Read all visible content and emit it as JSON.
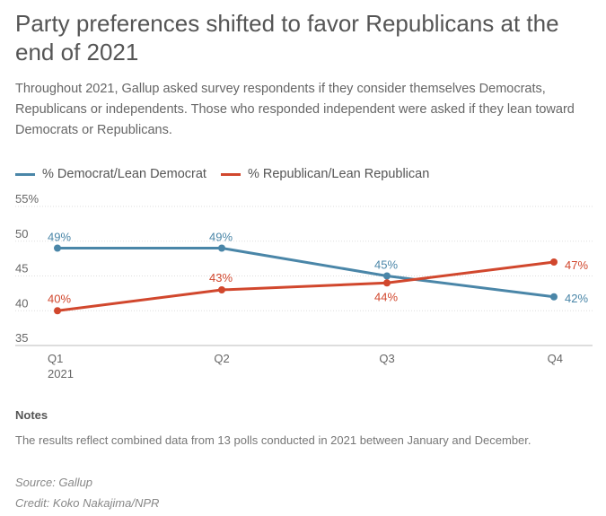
{
  "title": "Party preferences shifted to favor Republicans at the end of 2021",
  "subtitle": "Throughout 2021, Gallup asked survey respondents if they consider themselves Democrats, Republicans or independents. Those who responded independent were asked if they lean toward Democrats or Republicans.",
  "legend": {
    "dem": "% Democrat/Lean Democrat",
    "rep": "% Republican/Lean Republican"
  },
  "colors": {
    "dem": "#4a86a8",
    "rep": "#d1472d"
  },
  "chart_data": {
    "type": "line",
    "categories": [
      "Q1",
      "Q2",
      "Q3",
      "Q4"
    ],
    "category_sublabels": [
      "2021",
      "",
      "",
      ""
    ],
    "y_tick_labels": [
      "55%",
      "50",
      "45",
      "40",
      "35"
    ],
    "y_ticks": [
      55,
      50,
      45,
      40,
      35
    ],
    "ylim": [
      35,
      55
    ],
    "grid": true,
    "series": [
      {
        "name": "% Democrat/Lean Democrat",
        "key": "dem",
        "values": [
          49,
          49,
          45,
          42
        ],
        "labels": [
          "49%",
          "49%",
          "45%",
          "42%"
        ]
      },
      {
        "name": "% Republican/Lean Republican",
        "key": "rep",
        "values": [
          40,
          43,
          44,
          47
        ],
        "labels": [
          "40%",
          "43%",
          "44%",
          "47%"
        ]
      }
    ]
  },
  "notes": {
    "heading": "Notes",
    "text": "The results reflect combined data from 13 polls conducted in 2021 between January and December."
  },
  "source": "Source: Gallup",
  "credit": "Credit: Koko Nakajima/NPR"
}
